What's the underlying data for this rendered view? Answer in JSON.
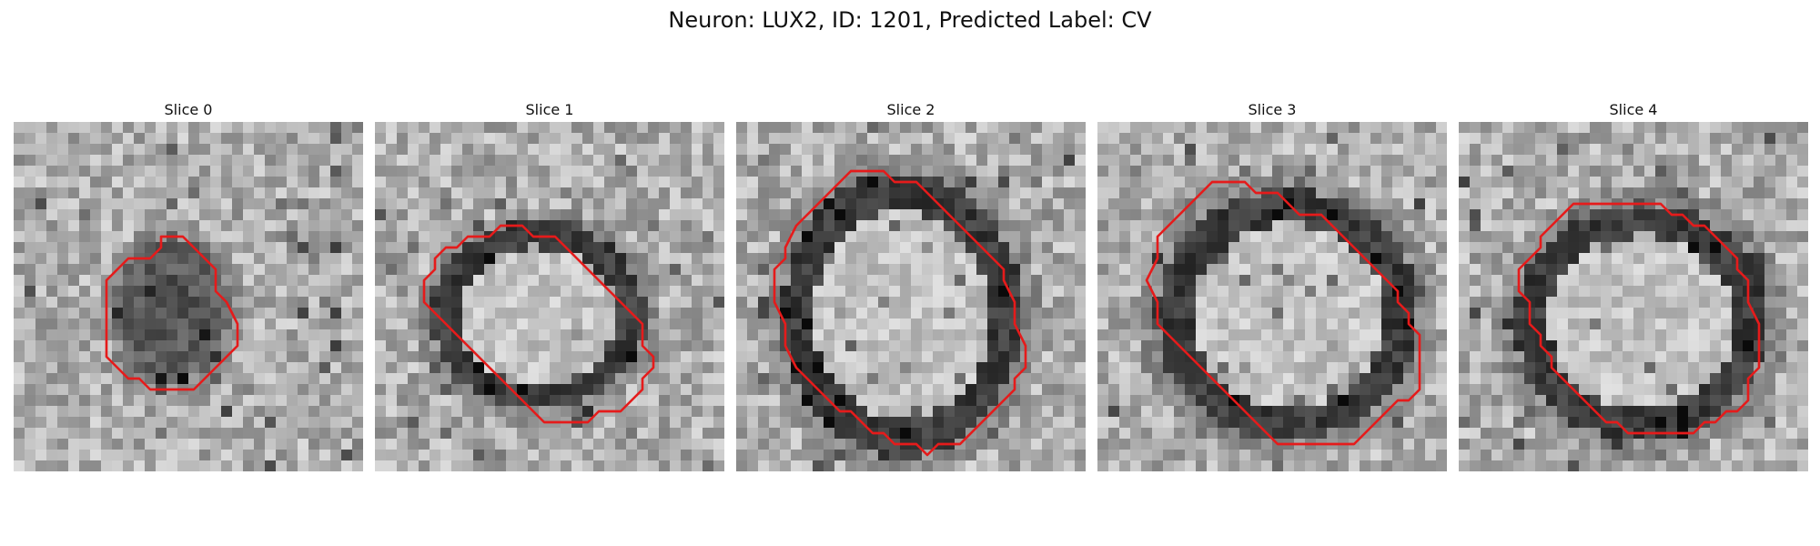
{
  "figure": {
    "title": "Neuron: LUX2, ID: 1201, Predicted Label: CV",
    "contour_color": "#e51b1b",
    "colormap": "grayscale",
    "panels": [
      {
        "title": "Slice 0",
        "ring": "filled-dark",
        "contour": [
          [
            13,
            10
          ],
          [
            14,
            10
          ],
          [
            15,
            10
          ],
          [
            16,
            11
          ],
          [
            17,
            12
          ],
          [
            18,
            13
          ],
          [
            18,
            15
          ],
          [
            19,
            16
          ],
          [
            20,
            18
          ],
          [
            20,
            20
          ],
          [
            19,
            21
          ],
          [
            18,
            22
          ],
          [
            17,
            23
          ],
          [
            16,
            24
          ],
          [
            12,
            24
          ],
          [
            11,
            23
          ],
          [
            10,
            23
          ],
          [
            9,
            22
          ],
          [
            8,
            21
          ],
          [
            8,
            16
          ],
          [
            8,
            14
          ],
          [
            9,
            13
          ],
          [
            10,
            12
          ],
          [
            12,
            12
          ],
          [
            13,
            11
          ]
        ]
      },
      {
        "title": "Slice 1",
        "ring": "dark-ring",
        "contour": [
          [
            12,
            9
          ],
          [
            13,
            9
          ],
          [
            14,
            10
          ],
          [
            16,
            10
          ],
          [
            17,
            11
          ],
          [
            18,
            12
          ],
          [
            19,
            13
          ],
          [
            20,
            14
          ],
          [
            21,
            15
          ],
          [
            22,
            16
          ],
          [
            23,
            17
          ],
          [
            24,
            18
          ],
          [
            24,
            20
          ],
          [
            25,
            21
          ],
          [
            25,
            22
          ],
          [
            24,
            23
          ],
          [
            24,
            24
          ],
          [
            23,
            25
          ],
          [
            22,
            26
          ],
          [
            20,
            26
          ],
          [
            19,
            27
          ],
          [
            15,
            27
          ],
          [
            14,
            26
          ],
          [
            13,
            25
          ],
          [
            12,
            24
          ],
          [
            11,
            23
          ],
          [
            10,
            22
          ],
          [
            9,
            21
          ],
          [
            8,
            20
          ],
          [
            7,
            19
          ],
          [
            6,
            18
          ],
          [
            5,
            17
          ],
          [
            4,
            16
          ],
          [
            4,
            14
          ],
          [
            5,
            13
          ],
          [
            5,
            12
          ],
          [
            6,
            11
          ],
          [
            7,
            11
          ],
          [
            8,
            10
          ],
          [
            9,
            10
          ],
          [
            10,
            10
          ],
          [
            11,
            9
          ]
        ]
      },
      {
        "title": "Slice 2",
        "ring": "dark-ring",
        "contour": [
          [
            9,
            5
          ],
          [
            10,
            4
          ],
          [
            12,
            4
          ],
          [
            13,
            4
          ],
          [
            14,
            5
          ],
          [
            16,
            5
          ],
          [
            17,
            6
          ],
          [
            18,
            7
          ],
          [
            19,
            8
          ],
          [
            20,
            9
          ],
          [
            21,
            10
          ],
          [
            22,
            11
          ],
          [
            23,
            12
          ],
          [
            24,
            13
          ],
          [
            24,
            14
          ],
          [
            25,
            16
          ],
          [
            25,
            18
          ],
          [
            26,
            20
          ],
          [
            26,
            22
          ],
          [
            25,
            23
          ],
          [
            25,
            24
          ],
          [
            24,
            25
          ],
          [
            23,
            26
          ],
          [
            22,
            27
          ],
          [
            21,
            28
          ],
          [
            20,
            29
          ],
          [
            18,
            29
          ],
          [
            17,
            30
          ],
          [
            16,
            29
          ],
          [
            14,
            29
          ],
          [
            13,
            28
          ],
          [
            12,
            28
          ],
          [
            11,
            27
          ],
          [
            10,
            26
          ],
          [
            9,
            26
          ],
          [
            8,
            25
          ],
          [
            7,
            24
          ],
          [
            6,
            23
          ],
          [
            5,
            22
          ],
          [
            4,
            20
          ],
          [
            4,
            18
          ],
          [
            3,
            16
          ],
          [
            3,
            13
          ],
          [
            4,
            12
          ],
          [
            4,
            11
          ],
          [
            5,
            9
          ],
          [
            6,
            8
          ],
          [
            7,
            7
          ],
          [
            8,
            6
          ]
        ]
      },
      {
        "title": "Slice 3",
        "ring": "dark-ring",
        "contour": [
          [
            9,
            6
          ],
          [
            10,
            5
          ],
          [
            13,
            5
          ],
          [
            14,
            6
          ],
          [
            16,
            6
          ],
          [
            17,
            7
          ],
          [
            18,
            8
          ],
          [
            20,
            8
          ],
          [
            21,
            9
          ],
          [
            22,
            10
          ],
          [
            23,
            11
          ],
          [
            24,
            12
          ],
          [
            25,
            13
          ],
          [
            26,
            14
          ],
          [
            27,
            15
          ],
          [
            27,
            16
          ],
          [
            28,
            17
          ],
          [
            28,
            18
          ],
          [
            29,
            19
          ],
          [
            29,
            21
          ],
          [
            29,
            24
          ],
          [
            28,
            25
          ],
          [
            27,
            25
          ],
          [
            26,
            26
          ],
          [
            25,
            27
          ],
          [
            24,
            28
          ],
          [
            23,
            29
          ],
          [
            20,
            29
          ],
          [
            18,
            29
          ],
          [
            16,
            29
          ],
          [
            15,
            28
          ],
          [
            14,
            27
          ],
          [
            13,
            26
          ],
          [
            12,
            25
          ],
          [
            11,
            24
          ],
          [
            10,
            23
          ],
          [
            9,
            22
          ],
          [
            8,
            21
          ],
          [
            7,
            20
          ],
          [
            6,
            19
          ],
          [
            5,
            18
          ],
          [
            5,
            16
          ],
          [
            4,
            14
          ],
          [
            5,
            12
          ],
          [
            5,
            10
          ],
          [
            6,
            9
          ],
          [
            7,
            8
          ],
          [
            8,
            7
          ]
        ]
      },
      {
        "title": "Slice 4",
        "ring": "dark-ring",
        "contour": [
          [
            10,
            7
          ],
          [
            13,
            7
          ],
          [
            18,
            7
          ],
          [
            19,
            8
          ],
          [
            20,
            8
          ],
          [
            21,
            9
          ],
          [
            22,
            9
          ],
          [
            23,
            10
          ],
          [
            24,
            11
          ],
          [
            25,
            12
          ],
          [
            25,
            13
          ],
          [
            26,
            14
          ],
          [
            26,
            16
          ],
          [
            27,
            18
          ],
          [
            27,
            20
          ],
          [
            27,
            22
          ],
          [
            26,
            23
          ],
          [
            26,
            25
          ],
          [
            25,
            26
          ],
          [
            24,
            26
          ],
          [
            23,
            27
          ],
          [
            22,
            27
          ],
          [
            21,
            28
          ],
          [
            20,
            28
          ],
          [
            18,
            28
          ],
          [
            15,
            28
          ],
          [
            14,
            27
          ],
          [
            13,
            27
          ],
          [
            12,
            26
          ],
          [
            11,
            25
          ],
          [
            10,
            24
          ],
          [
            9,
            23
          ],
          [
            8,
            22
          ],
          [
            8,
            21
          ],
          [
            7,
            20
          ],
          [
            7,
            19
          ],
          [
            6,
            18
          ],
          [
            6,
            16
          ],
          [
            5,
            15
          ],
          [
            5,
            13
          ],
          [
            6,
            12
          ],
          [
            7,
            11
          ],
          [
            7,
            10
          ],
          [
            8,
            9
          ],
          [
            9,
            8
          ]
        ]
      }
    ]
  }
}
